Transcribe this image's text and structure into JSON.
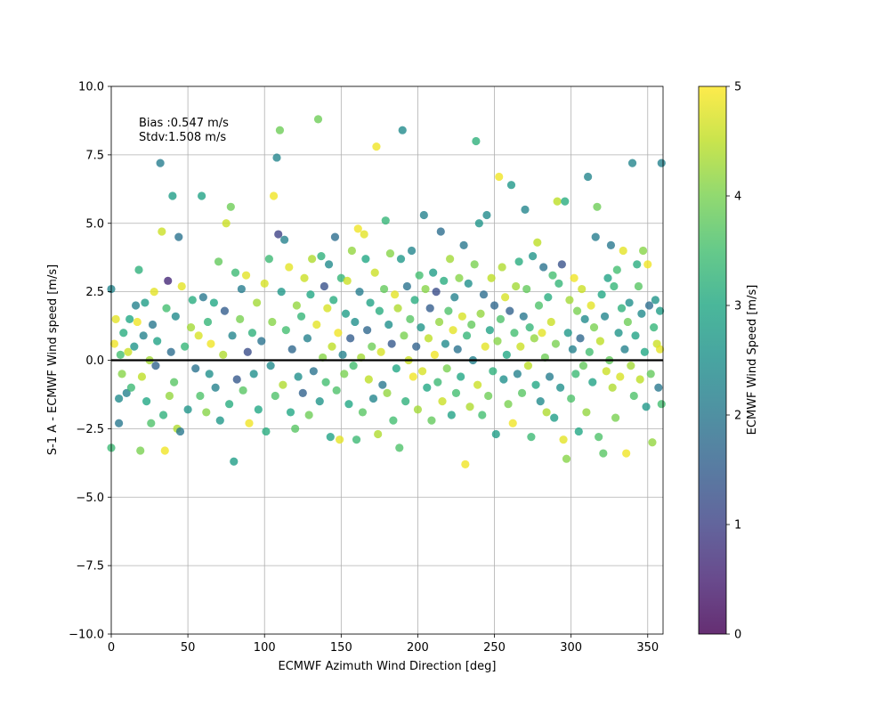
{
  "chart_data": {
    "type": "scatter",
    "title": "",
    "xlabel": "ECMWF Azimuth Wind Direction [deg]",
    "ylabel": "S-1 A - ECMWF Wind speed [m/s]",
    "xlim": [
      0,
      360
    ],
    "ylim": [
      -10,
      10
    ],
    "x_ticks": [
      0,
      50,
      100,
      150,
      200,
      250,
      300,
      350
    ],
    "y_ticks": [
      -10.0,
      -7.5,
      -5.0,
      -2.5,
      0.0,
      2.5,
      5.0,
      7.5,
      10.0
    ],
    "grid": true,
    "reference_line_y": 0,
    "annotations": [
      "Bias :0.547 m/s",
      "Stdv:1.508 m/s"
    ],
    "colorbar": {
      "label": "ECMWF Wind Speed [m/s]",
      "range": [
        0,
        5
      ],
      "ticks": [
        0,
        1,
        2,
        3,
        4,
        5
      ],
      "colormap": "viridis"
    },
    "points": [
      [
        0,
        2.6,
        2.3
      ],
      [
        0,
        -3.2,
        3.4
      ],
      [
        2,
        0.6,
        4.9
      ],
      [
        3,
        1.5,
        4.8
      ],
      [
        5,
        -2.3,
        2.0
      ],
      [
        5,
        -1.4,
        2.4
      ],
      [
        6,
        0.2,
        3.5
      ],
      [
        7,
        -0.5,
        4.1
      ],
      [
        8,
        1.0,
        3.1
      ],
      [
        10,
        -1.2,
        2.2
      ],
      [
        11,
        0.3,
        4.6
      ],
      [
        12,
        1.5,
        3.0
      ],
      [
        13,
        -1.0,
        3.4
      ],
      [
        15,
        0.5,
        2.6
      ],
      [
        16,
        2.0,
        2.2
      ],
      [
        17,
        1.4,
        4.9
      ],
      [
        18,
        3.3,
        3.2
      ],
      [
        19,
        -3.3,
        4.0
      ],
      [
        20,
        -0.6,
        4.5
      ],
      [
        21,
        0.9,
        2.2
      ],
      [
        22,
        2.1,
        2.8
      ],
      [
        23,
        -1.5,
        3.0
      ],
      [
        25,
        0.0,
        4.3
      ],
      [
        26,
        -2.3,
        3.6
      ],
      [
        27,
        1.3,
        2.0
      ],
      [
        28,
        2.5,
        4.8
      ],
      [
        29,
        -0.2,
        1.6
      ],
      [
        30,
        0.7,
        2.9
      ],
      [
        32,
        7.2,
        2.1
      ],
      [
        33,
        4.7,
        4.6
      ],
      [
        34,
        -2.0,
        3.2
      ],
      [
        35,
        -3.3,
        4.9
      ],
      [
        36,
        1.9,
        3.5
      ],
      [
        37,
        2.9,
        0.6
      ],
      [
        38,
        -1.3,
        4.2
      ],
      [
        39,
        0.3,
        1.8
      ],
      [
        40,
        6.0,
        2.8
      ],
      [
        41,
        -0.8,
        3.7
      ],
      [
        42,
        1.6,
        2.4
      ],
      [
        43,
        -2.5,
        4.4
      ],
      [
        44,
        4.5,
        1.9
      ],
      [
        45,
        -2.6,
        2.0
      ],
      [
        46,
        2.7,
        4.8
      ],
      [
        48,
        0.5,
        3.3
      ],
      [
        50,
        -1.8,
        2.6
      ],
      [
        52,
        1.2,
        4.3
      ],
      [
        53,
        2.2,
        3.1
      ],
      [
        55,
        -0.3,
        1.9
      ],
      [
        57,
        0.9,
        4.7
      ],
      [
        58,
        -1.3,
        3.6
      ],
      [
        59,
        6.0,
        2.9
      ],
      [
        60,
        2.3,
        2.0
      ],
      [
        62,
        -1.9,
        4.1
      ],
      [
        63,
        1.4,
        3.3
      ],
      [
        64,
        -0.5,
        2.5
      ],
      [
        65,
        0.6,
        4.9
      ],
      [
        67,
        2.1,
        3.0
      ],
      [
        68,
        -1.0,
        2.2
      ],
      [
        70,
        3.6,
        3.8
      ],
      [
        71,
        -2.2,
        2.7
      ],
      [
        73,
        0.2,
        4.4
      ],
      [
        74,
        1.8,
        1.5
      ],
      [
        75,
        5.0,
        4.6
      ],
      [
        77,
        -1.6,
        3.1
      ],
      [
        78,
        5.6,
        3.9
      ],
      [
        79,
        0.9,
        2.3
      ],
      [
        80,
        -3.7,
        2.8
      ],
      [
        81,
        3.2,
        3.4
      ],
      [
        82,
        -0.7,
        1.4
      ],
      [
        84,
        1.5,
        4.0
      ],
      [
        85,
        2.6,
        2.1
      ],
      [
        86,
        -1.1,
        3.7
      ],
      [
        88,
        3.1,
        4.8
      ],
      [
        89,
        0.3,
        1.2
      ],
      [
        90,
        -2.3,
        4.9
      ],
      [
        92,
        1.0,
        3.2
      ],
      [
        93,
        -0.5,
        2.5
      ],
      [
        95,
        2.1,
        4.3
      ],
      [
        96,
        -1.8,
        3.0
      ],
      [
        98,
        0.7,
        1.9
      ],
      [
        100,
        2.8,
        4.7
      ],
      [
        101,
        -2.6,
        3.1
      ],
      [
        103,
        3.7,
        3.4
      ],
      [
        104,
        -0.2,
        2.4
      ],
      [
        105,
        1.4,
        4.1
      ],
      [
        106,
        6.0,
        4.9
      ],
      [
        107,
        -1.3,
        3.6
      ],
      [
        108,
        7.4,
        2.3
      ],
      [
        109,
        4.6,
        1.0
      ],
      [
        110,
        8.4,
        3.9
      ],
      [
        111,
        2.5,
        2.7
      ],
      [
        112,
        -0.9,
        4.4
      ],
      [
        113,
        4.4,
        2.2
      ],
      [
        114,
        1.1,
        3.5
      ],
      [
        116,
        3.4,
        4.8
      ],
      [
        117,
        -1.9,
        3.0
      ],
      [
        118,
        0.4,
        1.7
      ],
      [
        120,
        -2.5,
        3.7
      ],
      [
        121,
        2.0,
        4.2
      ],
      [
        122,
        -0.6,
        2.5
      ],
      [
        124,
        1.6,
        3.3
      ],
      [
        125,
        -1.2,
        1.6
      ],
      [
        126,
        3.0,
        4.6
      ],
      [
        128,
        0.8,
        2.2
      ],
      [
        129,
        -2.0,
        3.9
      ],
      [
        130,
        2.4,
        3.0
      ],
      [
        131,
        3.7,
        4.4
      ],
      [
        132,
        -0.4,
        1.9
      ],
      [
        134,
        1.3,
        4.8
      ],
      [
        135,
        8.8,
        3.9
      ],
      [
        136,
        -1.5,
        2.6
      ],
      [
        137,
        3.8,
        3.2
      ],
      [
        138,
        0.1,
        4.1
      ],
      [
        139,
        2.7,
        1.3
      ],
      [
        140,
        -0.8,
        3.5
      ],
      [
        141,
        1.9,
        4.7
      ],
      [
        142,
        3.5,
        2.4
      ],
      [
        143,
        -2.8,
        2.9
      ],
      [
        144,
        0.5,
        4.5
      ],
      [
        145,
        2.2,
        3.1
      ],
      [
        146,
        4.5,
        1.8
      ],
      [
        147,
        -1.1,
        3.6
      ],
      [
        148,
        1.0,
        4.9
      ],
      [
        149,
        -2.9,
        4.8
      ],
      [
        150,
        3.0,
        3.3
      ],
      [
        151,
        0.2,
        2.2
      ],
      [
        152,
        -0.5,
        4.0
      ],
      [
        153,
        1.7,
        2.8
      ],
      [
        154,
        2.9,
        4.6
      ],
      [
        155,
        -1.6,
        3.0
      ],
      [
        156,
        0.8,
        1.5
      ],
      [
        157,
        4.0,
        4.2
      ],
      [
        158,
        -0.2,
        3.5
      ],
      [
        159,
        1.4,
        2.5
      ],
      [
        160,
        -2.9,
        3.4
      ],
      [
        161,
        4.8,
        4.9
      ],
      [
        162,
        2.5,
        2.1
      ],
      [
        163,
        0.1,
        4.3
      ],
      [
        164,
        -1.9,
        3.7
      ],
      [
        165,
        4.6,
        4.8
      ],
      [
        166,
        3.7,
        3.0
      ],
      [
        167,
        1.1,
        1.7
      ],
      [
        168,
        -0.7,
        4.5
      ],
      [
        169,
        2.1,
        2.9
      ],
      [
        170,
        0.5,
        3.9
      ],
      [
        171,
        -1.4,
        2.3
      ],
      [
        172,
        3.2,
        4.6
      ],
      [
        173,
        7.8,
        4.9
      ],
      [
        174,
        -2.7,
        4.4
      ],
      [
        175,
        1.8,
        3.1
      ],
      [
        176,
        0.3,
        4.7
      ],
      [
        177,
        -0.9,
        2.0
      ],
      [
        178,
        2.6,
        3.8
      ],
      [
        179,
        5.1,
        3.3
      ],
      [
        180,
        -1.2,
        4.2
      ],
      [
        181,
        1.3,
        2.5
      ],
      [
        182,
        3.9,
        4.1
      ],
      [
        183,
        0.6,
        1.4
      ],
      [
        184,
        -2.2,
        3.5
      ],
      [
        185,
        2.4,
        4.8
      ],
      [
        186,
        -0.3,
        3.0
      ],
      [
        187,
        1.9,
        4.4
      ],
      [
        188,
        -3.2,
        3.6
      ],
      [
        189,
        3.7,
        2.7
      ],
      [
        190,
        8.4,
        2.4
      ],
      [
        191,
        0.9,
        4.0
      ],
      [
        192,
        -1.5,
        3.2
      ],
      [
        193,
        2.7,
        1.9
      ],
      [
        194,
        0.0,
        4.6
      ],
      [
        195,
        1.5,
        3.7
      ],
      [
        196,
        4.0,
        2.3
      ],
      [
        197,
        -0.6,
        4.9
      ],
      [
        198,
        2.2,
        3.1
      ],
      [
        199,
        0.5,
        1.6
      ],
      [
        200,
        -1.8,
        4.3
      ],
      [
        201,
        3.1,
        3.5
      ],
      [
        202,
        1.2,
        2.6
      ],
      [
        203,
        -0.4,
        4.7
      ],
      [
        204,
        5.3,
        2.2
      ],
      [
        205,
        2.6,
        4.1
      ],
      [
        206,
        -1.0,
        3.0
      ],
      [
        207,
        0.8,
        4.5
      ],
      [
        208,
        1.9,
        1.5
      ],
      [
        209,
        -2.2,
        3.8
      ],
      [
        210,
        3.2,
        2.8
      ],
      [
        211,
        0.2,
        4.9
      ],
      [
        212,
        2.5,
        1.2
      ],
      [
        213,
        -0.8,
        3.4
      ],
      [
        214,
        1.4,
        4.2
      ],
      [
        215,
        4.7,
        1.8
      ],
      [
        216,
        -1.5,
        4.6
      ],
      [
        217,
        2.9,
        3.1
      ],
      [
        218,
        0.6,
        2.4
      ],
      [
        219,
        -0.3,
        4.0
      ],
      [
        220,
        1.8,
        3.6
      ],
      [
        221,
        3.7,
        4.3
      ],
      [
        222,
        -2.0,
        2.9
      ],
      [
        223,
        1.1,
        4.8
      ],
      [
        224,
        2.3,
        2.2
      ],
      [
        225,
        -1.2,
        3.5
      ],
      [
        226,
        0.4,
        1.9
      ],
      [
        227,
        3.0,
        4.1
      ],
      [
        228,
        -0.6,
        3.0
      ],
      [
        229,
        1.6,
        4.7
      ],
      [
        230,
        4.2,
        2.0
      ],
      [
        231,
        -3.8,
        4.9
      ],
      [
        232,
        0.9,
        3.3
      ],
      [
        233,
        2.8,
        2.5
      ],
      [
        234,
        -1.7,
        4.4
      ],
      [
        235,
        1.3,
        3.8
      ],
      [
        236,
        0.0,
        2.2
      ],
      [
        237,
        3.5,
        4.0
      ],
      [
        238,
        8.0,
        3.2
      ],
      [
        239,
        -0.9,
        4.6
      ],
      [
        240,
        5.0,
        2.6
      ],
      [
        241,
        1.7,
        4.2
      ],
      [
        242,
        -2.0,
        3.5
      ],
      [
        243,
        2.4,
        1.8
      ],
      [
        244,
        0.5,
        4.8
      ],
      [
        245,
        5.3,
        2.4
      ],
      [
        246,
        -1.3,
        3.9
      ],
      [
        247,
        1.1,
        2.9
      ],
      [
        248,
        3.0,
        4.5
      ],
      [
        249,
        -0.4,
        3.2
      ],
      [
        250,
        2.0,
        1.7
      ],
      [
        251,
        -2.7,
        2.8
      ],
      [
        252,
        0.7,
        4.1
      ],
      [
        253,
        6.7,
        4.9
      ],
      [
        254,
        1.5,
        3.6
      ],
      [
        255,
        3.4,
        4.4
      ],
      [
        256,
        -0.7,
        2.5
      ],
      [
        257,
        2.3,
        4.7
      ],
      [
        258,
        0.2,
        3.0
      ],
      [
        259,
        -1.6,
        4.0
      ],
      [
        260,
        1.8,
        1.6
      ],
      [
        261,
        6.4,
        2.7
      ],
      [
        262,
        -2.3,
        4.9
      ],
      [
        263,
        1.0,
        3.5
      ],
      [
        264,
        2.7,
        4.3
      ],
      [
        265,
        -0.5,
        2.2
      ],
      [
        266,
        3.6,
        3.1
      ],
      [
        267,
        0.5,
        4.6
      ],
      [
        268,
        -1.2,
        3.7
      ],
      [
        269,
        1.6,
        2.0
      ],
      [
        270,
        5.5,
        2.3
      ],
      [
        271,
        2.6,
        3.8
      ],
      [
        272,
        -0.2,
        4.5
      ],
      [
        273,
        1.2,
        3.3
      ],
      [
        274,
        -2.8,
        3.4
      ],
      [
        275,
        3.8,
        2.6
      ],
      [
        276,
        0.8,
        4.2
      ],
      [
        277,
        -0.9,
        3.0
      ],
      [
        278,
        4.3,
        4.5
      ],
      [
        279,
        2.0,
        3.6
      ],
      [
        280,
        -1.5,
        2.4
      ],
      [
        281,
        1.0,
        4.8
      ],
      [
        282,
        3.4,
        1.9
      ],
      [
        283,
        0.1,
        3.9
      ],
      [
        284,
        -1.9,
        4.4
      ],
      [
        285,
        2.3,
        3.1
      ],
      [
        286,
        -0.6,
        2.1
      ],
      [
        287,
        1.4,
        4.6
      ],
      [
        288,
        3.1,
        3.5
      ],
      [
        289,
        -2.1,
        2.8
      ],
      [
        290,
        0.6,
        4.0
      ],
      [
        291,
        5.8,
        4.5
      ],
      [
        292,
        2.8,
        3.3
      ],
      [
        293,
        -1.0,
        2.5
      ],
      [
        294,
        3.5,
        1.3
      ],
      [
        295,
        -2.9,
        4.8
      ],
      [
        296,
        5.8,
        3.1
      ],
      [
        297,
        -3.6,
        4.1
      ],
      [
        298,
        1.0,
        2.7
      ],
      [
        299,
        2.2,
        4.3
      ],
      [
        300,
        -1.4,
        3.6
      ],
      [
        301,
        0.4,
        2.2
      ],
      [
        302,
        3.0,
        4.9
      ],
      [
        303,
        -0.5,
        3.4
      ],
      [
        304,
        1.8,
        4.0
      ],
      [
        305,
        -2.6,
        3.0
      ],
      [
        306,
        0.8,
        1.7
      ],
      [
        307,
        2.6,
        4.6
      ],
      [
        308,
        -0.2,
        3.8
      ],
      [
        309,
        1.5,
        2.4
      ],
      [
        310,
        -1.9,
        4.2
      ],
      [
        311,
        6.7,
        2.3
      ],
      [
        312,
        0.3,
        3.5
      ],
      [
        313,
        2.0,
        4.8
      ],
      [
        314,
        -0.8,
        2.9
      ],
      [
        315,
        1.2,
        4.0
      ],
      [
        316,
        4.5,
        2.1
      ],
      [
        317,
        5.6,
        3.9
      ],
      [
        318,
        -2.8,
        3.6
      ],
      [
        319,
        0.7,
        4.5
      ],
      [
        320,
        2.4,
        3.0
      ],
      [
        321,
        -3.4,
        3.7
      ],
      [
        322,
        1.6,
        2.3
      ],
      [
        323,
        -0.4,
        4.6
      ],
      [
        324,
        3.0,
        2.9
      ],
      [
        325,
        0.0,
        3.8
      ],
      [
        326,
        4.2,
        2.0
      ],
      [
        327,
        -1.0,
        4.4
      ],
      [
        328,
        2.7,
        3.3
      ],
      [
        329,
        -2.1,
        4.0
      ],
      [
        330,
        3.3,
        3.5
      ],
      [
        331,
        1.0,
        2.6
      ],
      [
        332,
        -0.6,
        4.7
      ],
      [
        333,
        1.9,
        3.2
      ],
      [
        334,
        4.0,
        4.8
      ],
      [
        335,
        0.4,
        2.2
      ],
      [
        336,
        -3.4,
        4.9
      ],
      [
        337,
        1.4,
        3.9
      ],
      [
        338,
        2.1,
        2.5
      ],
      [
        339,
        -0.2,
        4.3
      ],
      [
        340,
        7.2,
        2.3
      ],
      [
        341,
        -1.3,
        3.6
      ],
      [
        342,
        0.9,
        2.9
      ],
      [
        343,
        3.5,
        3.1
      ],
      [
        344,
        2.7,
        3.7
      ],
      [
        345,
        -0.7,
        4.5
      ],
      [
        346,
        1.7,
        2.4
      ],
      [
        347,
        4.0,
        4.1
      ],
      [
        348,
        0.3,
        3.0
      ],
      [
        349,
        -1.7,
        2.7
      ],
      [
        350,
        3.5,
        4.9
      ],
      [
        351,
        2.0,
        1.8
      ],
      [
        352,
        -0.5,
        3.8
      ],
      [
        353,
        -3.0,
        4.2
      ],
      [
        354,
        1.2,
        3.3
      ],
      [
        355,
        2.2,
        2.6
      ],
      [
        356,
        0.6,
        4.6
      ],
      [
        357,
        -1.0,
        2.0
      ],
      [
        358,
        1.8,
        2.8
      ],
      [
        359,
        7.2,
        2.2
      ],
      [
        359,
        -1.6,
        3.5
      ],
      [
        358,
        0.4,
        4.8
      ]
    ]
  }
}
